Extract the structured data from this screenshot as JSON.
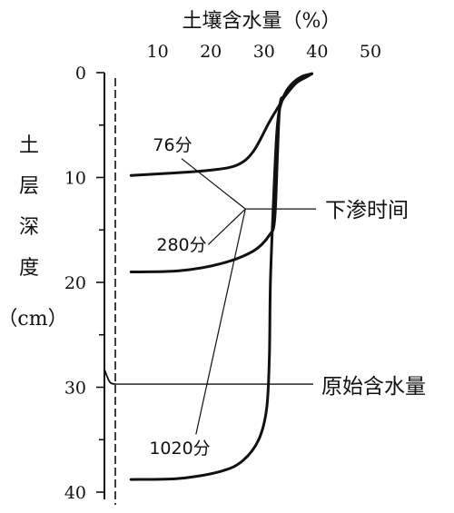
{
  "chart_data": {
    "type": "line",
    "title": "土壤含水量（%）",
    "xlabel": "土壤含水量（%）",
    "ylabel": {
      "chars": [
        "土",
        "层",
        "深",
        "度"
      ],
      "unit": "（cm）"
    },
    "xlim": [
      0,
      50
    ],
    "ylim": [
      0,
      40
    ],
    "x_axis_position": "top",
    "y_axis_inverted": true,
    "x_ticks": [
      10,
      20,
      30,
      40,
      50
    ],
    "y_ticks": [
      0,
      10,
      20,
      30,
      40
    ],
    "series": [
      {
        "name": "76分",
        "points": [
          [
            5,
            9.8
          ],
          [
            12,
            9.6
          ],
          [
            20,
            9.3
          ],
          [
            25,
            8.8
          ],
          [
            28,
            7.5
          ],
          [
            31,
            4.7
          ],
          [
            33,
            3.0
          ],
          [
            34,
            2.2
          ],
          [
            36,
            1.0
          ],
          [
            38,
            0.4
          ],
          [
            39,
            0.1
          ]
        ]
      },
      {
        "name": "280分",
        "points": [
          [
            5,
            19.0
          ],
          [
            14,
            18.9
          ],
          [
            22,
            18.2
          ],
          [
            28,
            17.0
          ],
          [
            31,
            15.5
          ],
          [
            32,
            14.0
          ],
          [
            32.5,
            8.0
          ],
          [
            33,
            3.0
          ],
          [
            34,
            2.2
          ],
          [
            36,
            1.0
          ],
          [
            38,
            0.4
          ],
          [
            39,
            0.1
          ]
        ]
      },
      {
        "name": "1020分",
        "points": [
          [
            5,
            38.8
          ],
          [
            14,
            38.7
          ],
          [
            22,
            38.0
          ],
          [
            26,
            37.0
          ],
          [
            29,
            35.0
          ],
          [
            30.5,
            32.0
          ],
          [
            31,
            27.0
          ],
          [
            31.2,
            20.0
          ],
          [
            31.8,
            12.0
          ],
          [
            32.5,
            5.0
          ],
          [
            33.5,
            2.5
          ],
          [
            35,
            1.2
          ],
          [
            37,
            0.4
          ],
          [
            39,
            0.1
          ]
        ]
      },
      {
        "name": "原始含水量",
        "points": [
          [
            0,
            28.3
          ],
          [
            1,
            29.5
          ],
          [
            2,
            29.7
          ]
        ]
      }
    ],
    "annotations": {
      "times": [
        "76分",
        "280分",
        "1020分"
      ],
      "infiltration_time": "下渗时间",
      "original_moisture": "原始含水量"
    }
  }
}
